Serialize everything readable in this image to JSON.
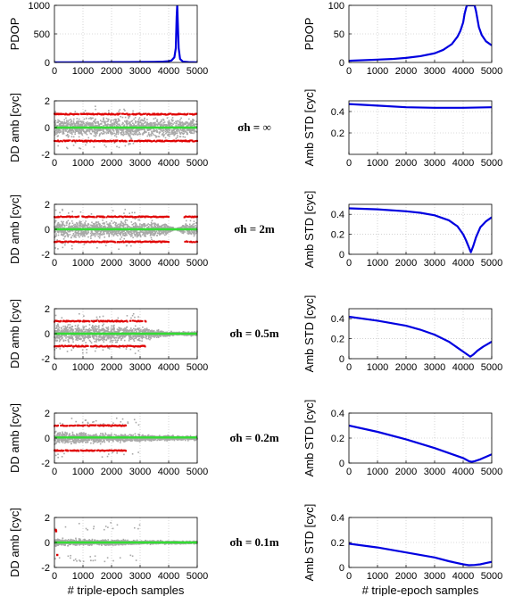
{
  "chart_data": {
    "rows": [
      {
        "sigma_label": "",
        "left": {
          "type": "line",
          "ylabel": "PDOP",
          "ylim": [
            0,
            1000
          ],
          "yticks": [
            0,
            500,
            1000
          ],
          "series": [
            {
              "color": "#0000e0",
              "x": [
                0,
                500,
                1000,
                1500,
                2000,
                2500,
                3000,
                3500,
                3800,
                4000,
                4100,
                4200,
                4250,
                4280,
                4300,
                4320,
                4350,
                4400,
                4500,
                4700,
                5000
              ],
              "y": [
                2,
                3,
                4,
                5,
                6,
                7,
                8,
                10,
                14,
                22,
                35,
                90,
                250,
                800,
                1000,
                700,
                250,
                60,
                15,
                6,
                3
              ]
            }
          ]
        },
        "right": {
          "type": "line",
          "ylabel": "PDOP",
          "ylim": [
            0,
            100
          ],
          "yticks": [
            0,
            50,
            100
          ],
          "series": [
            {
              "color": "#0000e0",
              "x": [
                0,
                500,
                1000,
                1500,
                2000,
                2500,
                3000,
                3300,
                3600,
                3800,
                3900,
                4000,
                4050,
                4100,
                4130,
                4400,
                4450,
                4550,
                4650,
                4800,
                5000
              ],
              "y": [
                3,
                4,
                5,
                6,
                8,
                11,
                16,
                22,
                32,
                45,
                55,
                70,
                85,
                95,
                100,
                100,
                90,
                62,
                48,
                37,
                30
              ]
            }
          ]
        }
      },
      {
        "sigma_label": "σh = ∞",
        "left": {
          "type": "scatter",
          "ylabel": "DD amb [cyc]",
          "ylim": [
            -2,
            2
          ],
          "yticks": [
            -2,
            0,
            2
          ],
          "env": {
            "x": [
              0,
              5000
            ],
            "hi": [
              0.95,
              0.95
            ],
            "lo": [
              -0.95,
              -0.95
            ]
          },
          "red_lines": [
            {
              "y": 1.0,
              "x": [
                0,
                5000
              ]
            },
            {
              "y": -1.0,
              "x": [
                0,
                5000
              ]
            }
          ],
          "mean": {
            "y": 0.0,
            "x": [
              0,
              5000
            ]
          }
        },
        "right": {
          "type": "line",
          "ylabel": "Amb STD [cyc]",
          "ylim": [
            0,
            0.5
          ],
          "yticks": [
            0.2,
            0.4
          ],
          "series": [
            {
              "color": "#0000e0",
              "x": [
                0,
                1000,
                2000,
                3000,
                4000,
                5000
              ],
              "y": [
                0.47,
                0.455,
                0.44,
                0.435,
                0.435,
                0.44
              ]
            }
          ]
        }
      },
      {
        "sigma_label": "σh = 2m",
        "left": {
          "type": "scatter",
          "ylabel": "DD amb [cyc]",
          "ylim": [
            -2,
            2
          ],
          "yticks": [
            -2,
            0,
            2
          ],
          "env": {
            "x": [
              0,
              3500,
              3900,
              4100,
              4250,
              4400,
              4600,
              5000
            ],
            "hi": [
              0.95,
              0.9,
              0.6,
              0.25,
              0.05,
              0.3,
              0.8,
              0.95
            ],
            "lo": [
              -0.95,
              -0.9,
              -0.6,
              -0.25,
              -0.05,
              -0.3,
              -0.8,
              -0.95
            ]
          },
          "red_lines": [
            {
              "y": 1.0,
              "x": [
                0,
                4000
              ]
            },
            {
              "y": -1.0,
              "x": [
                0,
                4000
              ]
            },
            {
              "y": 1.0,
              "x": [
                4550,
                5000
              ]
            },
            {
              "y": -1.0,
              "x": [
                4550,
                5000
              ]
            }
          ],
          "mean": {
            "y": 0.0,
            "x": [
              0,
              5000
            ]
          }
        },
        "right": {
          "type": "line",
          "ylabel": "Amb STD [cyc]",
          "ylim": [
            0,
            0.5
          ],
          "yticks": [
            0,
            0.2,
            0.4
          ],
          "series": [
            {
              "color": "#0000e0",
              "x": [
                0,
                1000,
                2000,
                2500,
                3000,
                3500,
                3800,
                4000,
                4100,
                4200,
                4270,
                4350,
                4450,
                4600,
                4800,
                5000
              ],
              "y": [
                0.46,
                0.45,
                0.43,
                0.415,
                0.39,
                0.34,
                0.28,
                0.2,
                0.14,
                0.07,
                0.02,
                0.08,
                0.17,
                0.27,
                0.33,
                0.37
              ]
            }
          ]
        }
      },
      {
        "sigma_label": "σh = 0.5m",
        "left": {
          "type": "scatter",
          "ylabel": "DD amb [cyc]",
          "ylim": [
            -2,
            2
          ],
          "yticks": [
            -2,
            0,
            2
          ],
          "env": {
            "x": [
              0,
              2500,
              3000,
              3500,
              4000,
              4300,
              4600,
              5000
            ],
            "hi": [
              0.95,
              0.85,
              0.7,
              0.45,
              0.25,
              0.15,
              0.2,
              0.3
            ],
            "lo": [
              -0.95,
              -0.85,
              -0.7,
              -0.45,
              -0.25,
              -0.15,
              -0.2,
              -0.3
            ]
          },
          "red_lines": [
            {
              "y": 1.0,
              "x": [
                0,
                3200
              ]
            },
            {
              "y": -1.0,
              "x": [
                0,
                3200
              ]
            }
          ],
          "mean": {
            "y": 0.0,
            "x": [
              0,
              5000
            ]
          }
        },
        "right": {
          "type": "line",
          "ylabel": "Amb STD [cyc]",
          "ylim": [
            0,
            0.5
          ],
          "yticks": [
            0,
            0.2,
            0.4
          ],
          "series": [
            {
              "color": "#0000e0",
              "x": [
                0,
                1000,
                2000,
                2500,
                3000,
                3500,
                3800,
                4000,
                4150,
                4250,
                4350,
                4500,
                4700,
                5000
              ],
              "y": [
                0.42,
                0.38,
                0.33,
                0.29,
                0.24,
                0.17,
                0.11,
                0.07,
                0.04,
                0.02,
                0.04,
                0.08,
                0.12,
                0.17
              ]
            }
          ]
        }
      },
      {
        "sigma_label": "σh = 0.2m",
        "left": {
          "type": "scatter",
          "ylabel": "DD amb [cyc]",
          "ylim": [
            -2,
            2
          ],
          "yticks": [
            -2,
            0,
            2
          ],
          "env": {
            "x": [
              0,
              1000,
              2000,
              3000,
              4000,
              5000
            ],
            "hi": [
              0.75,
              0.55,
              0.45,
              0.35,
              0.25,
              0.22
            ],
            "lo": [
              -0.75,
              -0.55,
              -0.45,
              -0.35,
              -0.25,
              -0.22
            ]
          },
          "red_lines": [
            {
              "y": 1.0,
              "x": [
                0,
                2500
              ]
            },
            {
              "y": -1.0,
              "x": [
                0,
                2500
              ]
            }
          ],
          "mean": {
            "y": 0.05,
            "x": [
              0,
              5000
            ]
          }
        },
        "right": {
          "type": "line",
          "ylabel": "Amb STD [cyc]",
          "ylim": [
            0,
            0.4
          ],
          "yticks": [
            0,
            0.2,
            0.4
          ],
          "series": [
            {
              "color": "#0000e0",
              "x": [
                0,
                1000,
                2000,
                3000,
                3500,
                4000,
                4200,
                4300,
                4400,
                4600,
                4800,
                5000
              ],
              "y": [
                0.3,
                0.25,
                0.19,
                0.12,
                0.08,
                0.04,
                0.015,
                0.01,
                0.015,
                0.03,
                0.05,
                0.07
              ]
            }
          ]
        }
      },
      {
        "sigma_label": "σh = 0.1m",
        "left": {
          "type": "scatter",
          "ylabel": "DD amb [cyc]",
          "ylim": [
            -2,
            2
          ],
          "yticks": [
            -2,
            0,
            2
          ],
          "env": {
            "x": [
              0,
              1000,
              2000,
              3000,
              4000,
              5000
            ],
            "hi": [
              0.4,
              0.32,
              0.27,
              0.22,
              0.17,
              0.15
            ],
            "lo": [
              -0.4,
              -0.32,
              -0.27,
              -0.22,
              -0.17,
              -0.15
            ]
          },
          "red_points": [
            [
              50,
              1.0
            ],
            [
              100,
              -1.0
            ],
            [
              60,
              0.9
            ]
          ],
          "mean": {
            "y": 0.0,
            "x": [
              0,
              5000
            ]
          },
          "xlabel": "# triple-epoch samples"
        },
        "right": {
          "type": "line",
          "ylabel": "Amb STD [cyc]",
          "ylim": [
            0,
            0.4
          ],
          "yticks": [
            0,
            0.2,
            0.4
          ],
          "series": [
            {
              "color": "#0000e0",
              "x": [
                0,
                1000,
                2000,
                3000,
                3500,
                4000,
                4200,
                4400,
                4600,
                4800,
                5000
              ],
              "y": [
                0.19,
                0.16,
                0.12,
                0.08,
                0.05,
                0.025,
                0.018,
                0.02,
                0.025,
                0.035,
                0.045
              ]
            }
          ],
          "xlabel": "# triple-epoch samples"
        }
      }
    ],
    "xlim": [
      0,
      5000
    ],
    "xticks": [
      0,
      1000,
      2000,
      3000,
      4000,
      5000
    ],
    "grid": true
  }
}
